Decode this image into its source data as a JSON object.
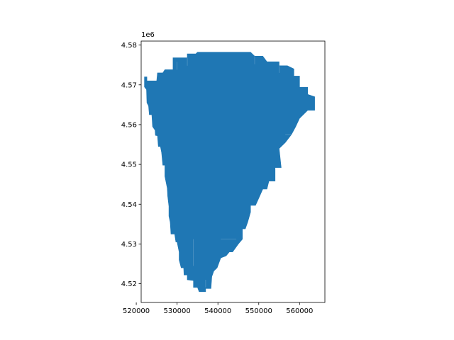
{
  "chart_data": {
    "type": "area",
    "title": "",
    "xlabel": "",
    "ylabel": "",
    "xlim": [
      521200,
      566200
    ],
    "ylim": [
      4515300,
      4581000
    ],
    "xticks": [
      520000,
      530000,
      540000,
      550000,
      560000
    ],
    "xtick_labels": [
      "520000",
      "530000",
      "540000",
      "550000",
      "560000"
    ],
    "yticks": [
      4520000,
      4530000,
      4540000,
      4550000,
      4560000,
      4570000,
      4580000
    ],
    "ytick_labels": [
      "4.52",
      "4.53",
      "4.54",
      "4.55",
      "4.56",
      "4.57",
      "4.58"
    ],
    "y_offset_label": "1e6",
    "grid": false,
    "fill_color": "#1f77b4",
    "edge_color": "#ffffff",
    "region_outline": [
      [
        539000,
        4578200
      ],
      [
        548000,
        4578200
      ],
      [
        549000,
        4577200
      ],
      [
        551000,
        4577200
      ],
      [
        552000,
        4575800
      ],
      [
        555000,
        4575800
      ],
      [
        555000,
        4574800
      ],
      [
        557000,
        4574800
      ],
      [
        558600,
        4574000
      ],
      [
        558600,
        4572200
      ],
      [
        560000,
        4572200
      ],
      [
        560000,
        4569400
      ],
      [
        562000,
        4569400
      ],
      [
        562000,
        4567600
      ],
      [
        563700,
        4567000
      ],
      [
        563700,
        4563600
      ],
      [
        562000,
        4563600
      ],
      [
        560000,
        4561600
      ],
      [
        559000,
        4559400
      ],
      [
        558000,
        4557500
      ],
      [
        556500,
        4555500
      ],
      [
        555000,
        4554000
      ],
      [
        555500,
        4549200
      ],
      [
        554000,
        4549200
      ],
      [
        554000,
        4545800
      ],
      [
        552500,
        4545800
      ],
      [
        552000,
        4543800
      ],
      [
        551000,
        4543800
      ],
      [
        550000,
        4541500
      ],
      [
        549200,
        4539700
      ],
      [
        548000,
        4539700
      ],
      [
        548000,
        4538000
      ],
      [
        547300,
        4535500
      ],
      [
        546700,
        4533800
      ],
      [
        546000,
        4533800
      ],
      [
        546000,
        4531200
      ],
      [
        545000,
        4530000
      ],
      [
        543600,
        4528000
      ],
      [
        542800,
        4528000
      ],
      [
        542000,
        4527000
      ],
      [
        540700,
        4526500
      ],
      [
        539800,
        4524000
      ],
      [
        539000,
        4523200
      ],
      [
        538500,
        4521800
      ],
      [
        538300,
        4518800
      ],
      [
        537000,
        4518800
      ],
      [
        537000,
        4518000
      ],
      [
        535400,
        4518000
      ],
      [
        535000,
        4519100
      ],
      [
        534000,
        4519100
      ],
      [
        534000,
        4520800
      ],
      [
        532500,
        4521000
      ],
      [
        532500,
        4522200
      ],
      [
        531700,
        4522200
      ],
      [
        531600,
        4524000
      ],
      [
        531000,
        4524000
      ],
      [
        530500,
        4526000
      ],
      [
        530500,
        4528000
      ],
      [
        530000,
        4530500
      ],
      [
        529700,
        4530500
      ],
      [
        529400,
        4532500
      ],
      [
        528500,
        4532500
      ],
      [
        528300,
        4535500
      ],
      [
        528000,
        4537000
      ],
      [
        528000,
        4539500
      ],
      [
        527700,
        4542000
      ],
      [
        527600,
        4544000
      ],
      [
        527000,
        4547000
      ],
      [
        527000,
        4549800
      ],
      [
        526500,
        4549800
      ],
      [
        526200,
        4553000
      ],
      [
        525900,
        4554500
      ],
      [
        525400,
        4554500
      ],
      [
        525200,
        4557200
      ],
      [
        524700,
        4557300
      ],
      [
        524600,
        4558600
      ],
      [
        524000,
        4559500
      ],
      [
        523800,
        4562500
      ],
      [
        523200,
        4562500
      ],
      [
        523000,
        4564700
      ],
      [
        522600,
        4565500
      ],
      [
        522500,
        4568800
      ],
      [
        522000,
        4569500
      ],
      [
        522000,
        4572000
      ],
      [
        522600,
        4572000
      ],
      [
        522600,
        4571000
      ],
      [
        524000,
        4571000
      ],
      [
        525000,
        4571000
      ],
      [
        525200,
        4573000
      ],
      [
        526500,
        4573000
      ],
      [
        527000,
        4573800
      ],
      [
        529000,
        4573800
      ],
      [
        529000,
        4576800
      ],
      [
        532500,
        4576800
      ],
      [
        532500,
        4577800
      ],
      [
        534600,
        4577800
      ],
      [
        535000,
        4578200
      ],
      [
        539000,
        4578200
      ]
    ]
  }
}
